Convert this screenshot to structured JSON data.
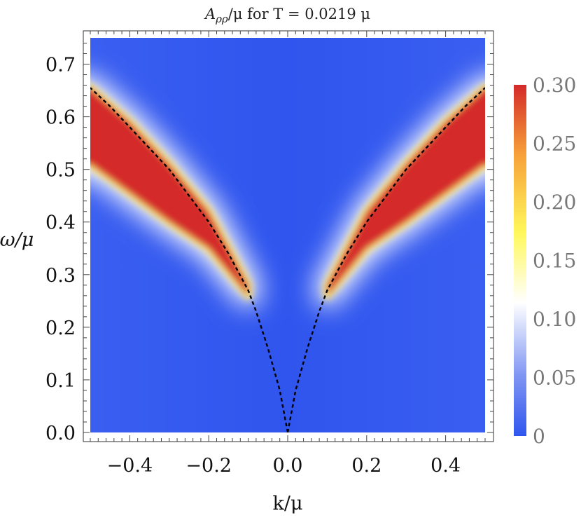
{
  "chart_data": {
    "type": "heatmap",
    "title": "A_ρρ/μ for T = 0.0219 μ",
    "title_main": "A",
    "title_sub": "ρρ",
    "title_rest": "/μ for T = 0.0219 μ",
    "xlabel": "k/μ",
    "ylabel": "ω/μ",
    "xlim": [
      -0.5,
      0.5
    ],
    "ylim": [
      0.0,
      0.75
    ],
    "x_ticks": [
      -0.4,
      -0.2,
      0.0,
      0.2,
      0.4
    ],
    "x_tick_labels": [
      "−0.4",
      "−0.2",
      "0.0",
      "0.2",
      "0.4"
    ],
    "y_ticks": [
      0.0,
      0.1,
      0.2,
      0.3,
      0.4,
      0.5,
      0.6,
      0.7
    ],
    "y_tick_labels": [
      "0.0",
      "0.1",
      "0.2",
      "0.3",
      "0.4",
      "0.5",
      "0.6",
      "0.7"
    ],
    "colorbar": {
      "range": [
        0,
        0.3
      ],
      "ticks": [
        0,
        0.05,
        0.1,
        0.15,
        0.2,
        0.25,
        0.3
      ],
      "tick_labels": [
        "0",
        "0.05",
        "0.10",
        "0.15",
        "0.20",
        "0.25",
        "0.30"
      ],
      "colors": [
        "#2f55ee",
        "#ffffff",
        "#fff85a",
        "#f7a13a",
        "#d42a2a"
      ]
    },
    "background_value": 0.0,
    "red_band": {
      "upper_edge": [
        [
          0.1,
          0.28
        ],
        [
          0.2,
          0.42
        ],
        [
          0.3,
          0.51
        ],
        [
          0.4,
          0.59
        ],
        [
          0.5,
          0.655
        ]
      ],
      "lower_edge": [
        [
          0.1,
          0.26
        ],
        [
          0.2,
          0.35
        ],
        [
          0.3,
          0.4
        ],
        [
          0.4,
          0.455
        ],
        [
          0.5,
          0.51
        ]
      ]
    },
    "dashed_curve": {
      "style": "dashed",
      "color": "#000000",
      "points": [
        [
          0.0,
          0.0
        ],
        [
          0.02,
          0.08
        ],
        [
          0.05,
          0.16
        ],
        [
          0.08,
          0.23
        ],
        [
          0.1,
          0.27
        ],
        [
          0.15,
          0.34
        ],
        [
          0.2,
          0.4
        ],
        [
          0.25,
          0.45
        ],
        [
          0.3,
          0.5
        ],
        [
          0.35,
          0.54
        ],
        [
          0.4,
          0.58
        ],
        [
          0.45,
          0.62
        ],
        [
          0.5,
          0.655
        ]
      ],
      "symmetric": true
    }
  }
}
